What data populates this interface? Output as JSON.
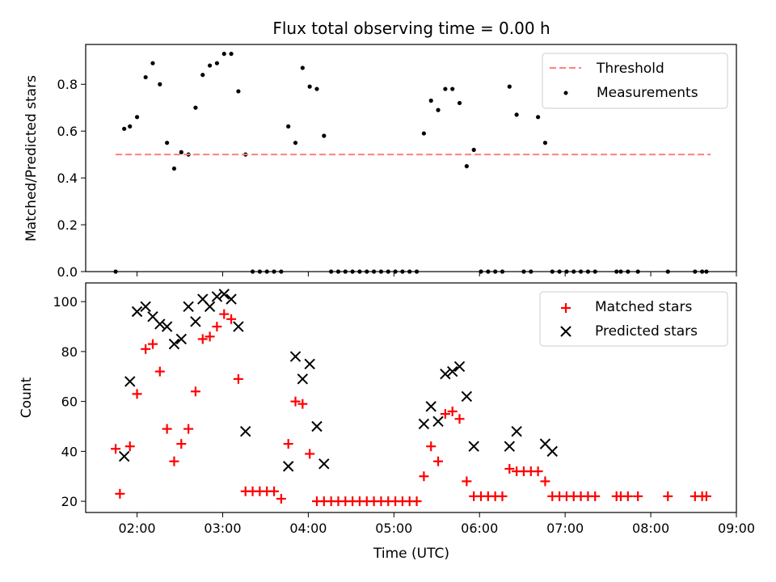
{
  "figure": {
    "title": "Flux total observing time = 0.00 h"
  },
  "chart_data": [
    {
      "type": "scatter",
      "title": "Flux total observing time = 0.00 h",
      "ylabel": "Matched/Predicted stars",
      "xlabel": "",
      "xlim": [
        "01:24",
        "09:00"
      ],
      "ylim": [
        0,
        0.97
      ],
      "yticks": [
        "0.0",
        "0.2",
        "0.4",
        "0.6",
        "0.8"
      ],
      "grid": false,
      "legend": {
        "placement": "top-right",
        "entries": [
          "Threshold",
          "Measurements"
        ]
      },
      "threshold": {
        "name": "Threshold",
        "value": 0.5,
        "x_start": "01:45",
        "x_end": "08:42",
        "color": "#ff8080",
        "style": "dashed"
      },
      "series": [
        {
          "name": "Measurements",
          "color": "#000000",
          "marker": "dot",
          "x": [
            "01:45",
            "01:51",
            "01:55",
            "02:00",
            "02:06",
            "02:11",
            "02:16",
            "02:21",
            "02:26",
            "02:31",
            "02:36",
            "02:41",
            "02:46",
            "02:51",
            "02:56",
            "03:01",
            "03:06",
            "03:11",
            "03:16",
            "03:21",
            "03:26",
            "03:31",
            "03:36",
            "03:41",
            "03:46",
            "03:51",
            "03:56",
            "04:01",
            "04:06",
            "04:11",
            "04:16",
            "04:21",
            "04:26",
            "04:31",
            "04:36",
            "04:41",
            "04:46",
            "04:51",
            "04:56",
            "05:01",
            "05:06",
            "05:11",
            "05:16",
            "05:21",
            "05:26",
            "05:31",
            "05:36",
            "05:41",
            "05:46",
            "05:51",
            "05:56",
            "06:01",
            "06:06",
            "06:11",
            "06:16",
            "06:21",
            "06:26",
            "06:31",
            "06:36",
            "06:41",
            "06:46",
            "06:51",
            "06:56",
            "07:01",
            "07:06",
            "07:11",
            "07:16",
            "07:21",
            "07:36",
            "07:39",
            "07:44",
            "07:51",
            "08:12",
            "08:31",
            "08:36",
            "08:39"
          ],
          "y": [
            0.0,
            0.61,
            0.62,
            0.66,
            0.83,
            0.89,
            0.8,
            0.55,
            0.44,
            0.51,
            0.5,
            0.7,
            0.84,
            0.88,
            0.89,
            0.93,
            0.93,
            0.77,
            0.5,
            0.0,
            0.0,
            0.0,
            0.0,
            0.0,
            0.62,
            0.55,
            0.87,
            0.79,
            0.78,
            0.58,
            0.0,
            0.0,
            0.0,
            0.0,
            0.0,
            0.0,
            0.0,
            0.0,
            0.0,
            0.0,
            0.0,
            0.0,
            0.0,
            0.59,
            0.73,
            0.69,
            0.78,
            0.78,
            0.72,
            0.45,
            0.52,
            0.0,
            0.0,
            0.0,
            0.0,
            0.79,
            0.67,
            0.0,
            0.0,
            0.66,
            0.55,
            0.0,
            0.0,
            0.0,
            0.0,
            0.0,
            0.0,
            0.0,
            0.0,
            0.0,
            0.0,
            0.0,
            0.0,
            0.0,
            0.0,
            0.0
          ]
        }
      ]
    },
    {
      "type": "scatter",
      "title": "",
      "ylabel": "Count",
      "xlabel": "Time (UTC)",
      "xlim": [
        "01:24",
        "09:00"
      ],
      "ylim": [
        15.5,
        107.5
      ],
      "yticks": [
        "20",
        "40",
        "60",
        "80",
        "100"
      ],
      "xticks": [
        "02:00",
        "03:00",
        "04:00",
        "05:00",
        "06:00",
        "07:00",
        "08:00",
        "09:00"
      ],
      "grid": false,
      "legend": {
        "placement": "top-right",
        "entries": [
          "Matched stars",
          "Predicted stars"
        ]
      },
      "series": [
        {
          "name": "Matched stars",
          "color": "#ff0000",
          "marker": "plus",
          "x": [
            "01:45",
            "01:48",
            "01:55",
            "02:00",
            "02:06",
            "02:11",
            "02:16",
            "02:21",
            "02:26",
            "02:31",
            "02:36",
            "02:41",
            "02:46",
            "02:51",
            "02:56",
            "03:01",
            "03:06",
            "03:11",
            "03:16",
            "03:21",
            "03:26",
            "03:31",
            "03:36",
            "03:41",
            "03:46",
            "03:51",
            "03:56",
            "04:01",
            "04:06",
            "04:11",
            "04:16",
            "04:21",
            "04:26",
            "04:31",
            "04:36",
            "04:41",
            "04:46",
            "04:51",
            "04:56",
            "05:01",
            "05:06",
            "05:11",
            "05:16",
            "05:21",
            "05:26",
            "05:31",
            "05:36",
            "05:41",
            "05:46",
            "05:51",
            "05:56",
            "06:01",
            "06:06",
            "06:11",
            "06:16",
            "06:21",
            "06:26",
            "06:31",
            "06:36",
            "06:41",
            "06:46",
            "06:51",
            "06:56",
            "07:01",
            "07:06",
            "07:11",
            "07:16",
            "07:21",
            "07:36",
            "07:39",
            "07:44",
            "07:51",
            "08:12",
            "08:31",
            "08:36",
            "08:39"
          ],
          "y": [
            41,
            23,
            42,
            63,
            81,
            83,
            72,
            49,
            36,
            43,
            49,
            64,
            85,
            86,
            90,
            95,
            93,
            69,
            24,
            24,
            24,
            24,
            24,
            21,
            43,
            60,
            59,
            39,
            20,
            20,
            20,
            20,
            20,
            20,
            20,
            20,
            20,
            20,
            20,
            20,
            20,
            20,
            20,
            30,
            42,
            36,
            55,
            56,
            53,
            28,
            22,
            22,
            22,
            22,
            22,
            33,
            32,
            32,
            32,
            32,
            28,
            22,
            22,
            22,
            22,
            22,
            22,
            22,
            22,
            22,
            22,
            22,
            22,
            22,
            22,
            22
          ]
        },
        {
          "name": "Predicted stars",
          "color": "#000000",
          "marker": "x",
          "x": [
            "01:51",
            "01:55",
            "02:00",
            "02:06",
            "02:11",
            "02:16",
            "02:21",
            "02:26",
            "02:31",
            "02:36",
            "02:41",
            "02:46",
            "02:51",
            "02:56",
            "03:01",
            "03:06",
            "03:11",
            "03:16",
            "03:46",
            "03:51",
            "03:56",
            "04:01",
            "04:06",
            "04:11",
            "05:21",
            "05:26",
            "05:31",
            "05:36",
            "05:41",
            "05:46",
            "05:51",
            "05:56",
            "06:21",
            "06:26",
            "06:46",
            "06:51"
          ],
          "y": [
            38,
            68,
            96,
            98,
            94,
            91,
            90,
            83,
            85,
            98,
            92,
            101,
            98,
            102,
            103,
            101,
            90,
            48,
            34,
            78,
            69,
            75,
            50,
            35,
            51,
            58,
            52,
            71,
            72,
            74,
            62,
            42,
            42,
            48,
            43,
            40
          ]
        }
      ]
    }
  ]
}
